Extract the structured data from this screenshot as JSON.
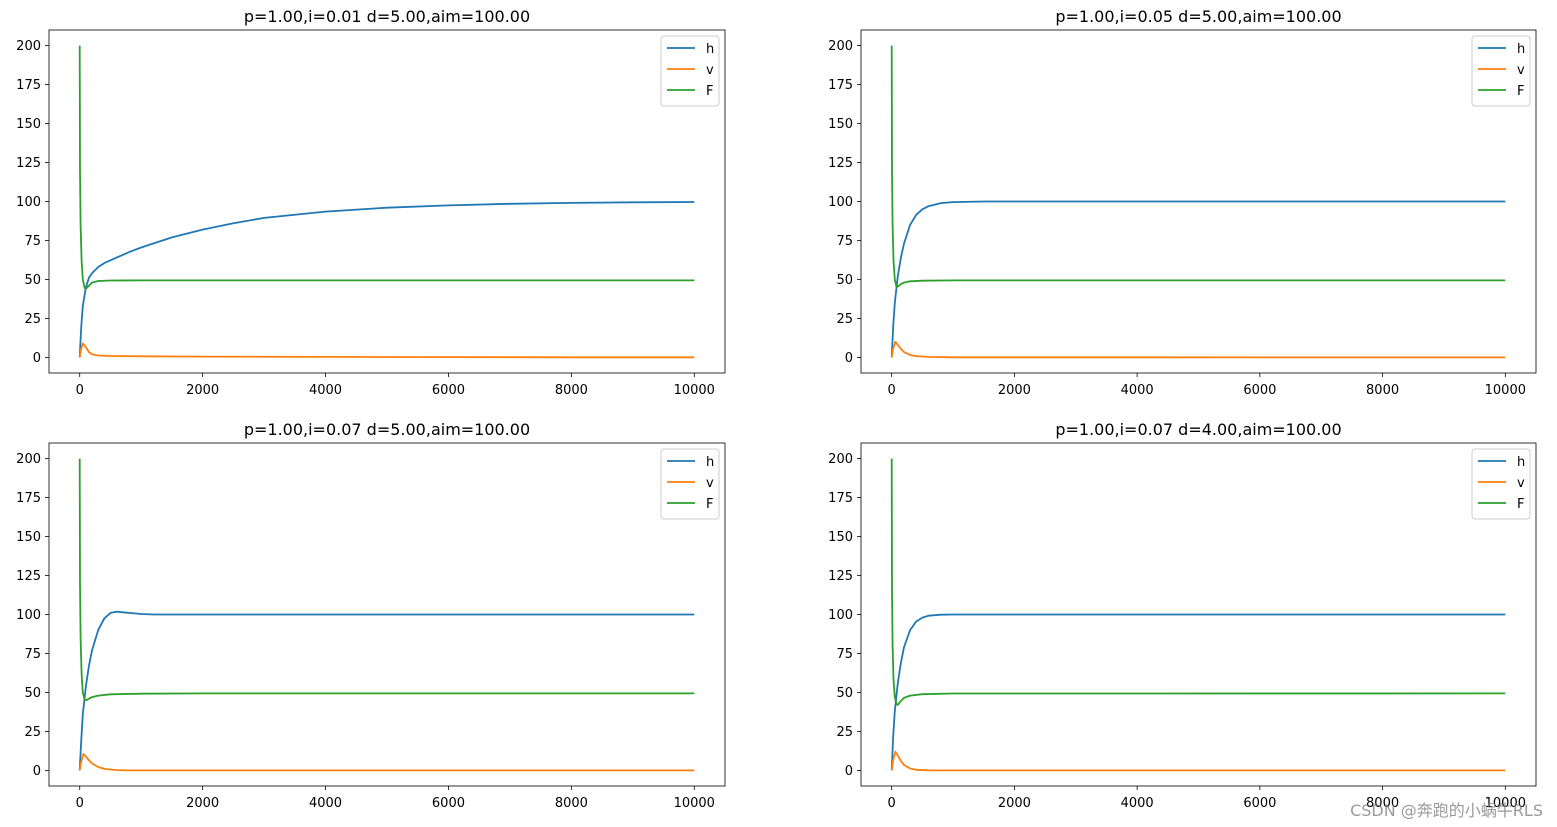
{
  "watermark": "CSDN @奔跑的小蜗牛RLS",
  "colors": {
    "h": "#1f77b4",
    "v": "#ff7f0e",
    "F": "#2ca02c"
  },
  "chart_data": [
    {
      "type": "line",
      "title": "p=1.00,i=0.01 d=5.00,aim=100.00",
      "xlim": [
        -500,
        10500
      ],
      "ylim": [
        -10,
        210
      ],
      "xticks": [
        0,
        2000,
        4000,
        6000,
        8000,
        10000
      ],
      "yticks": [
        0,
        25,
        50,
        75,
        100,
        125,
        150,
        175,
        200
      ],
      "legend": "top-right",
      "grid": false,
      "series": [
        {
          "name": "h",
          "color": "#1f77b4",
          "x": [
            0,
            10,
            25,
            50,
            100,
            150,
            200,
            300,
            400,
            600,
            800,
            1000,
            1500,
            2000,
            2500,
            3000,
            4000,
            5000,
            6000,
            7000,
            8000,
            9000,
            10000
          ],
          "y": [
            0,
            8,
            20,
            33,
            45,
            51,
            54,
            58,
            60.5,
            64,
            67.5,
            70.5,
            77,
            82,
            86,
            89.5,
            93.5,
            96,
            97.5,
            98.5,
            99.1,
            99.5,
            99.7
          ]
        },
        {
          "name": "v",
          "color": "#ff7f0e",
          "x": [
            0,
            20,
            50,
            100,
            150,
            200,
            300,
            500,
            1000,
            2000,
            4000,
            6000,
            8000,
            10000
          ],
          "y": [
            0,
            5,
            9,
            6.5,
            3.5,
            2,
            1.2,
            0.9,
            0.7,
            0.5,
            0.3,
            0.2,
            0.1,
            0.05
          ]
        },
        {
          "name": "F",
          "color": "#2ca02c",
          "x": [
            0,
            5,
            15,
            30,
            50,
            80,
            100,
            150,
            200,
            300,
            500,
            1000,
            2000,
            10000
          ],
          "y": [
            200,
            120,
            85,
            62,
            50,
            44.5,
            44,
            46,
            48,
            49,
            49.3,
            49.4,
            49.4,
            49.4
          ]
        }
      ]
    },
    {
      "type": "line",
      "title": "p=1.00,i=0.05 d=5.00,aim=100.00",
      "xlim": [
        -500,
        10500
      ],
      "ylim": [
        -10,
        210
      ],
      "xticks": [
        0,
        2000,
        4000,
        6000,
        8000,
        10000
      ],
      "yticks": [
        0,
        25,
        50,
        75,
        100,
        125,
        150,
        175,
        200
      ],
      "legend": "top-right",
      "grid": false,
      "series": [
        {
          "name": "h",
          "color": "#1f77b4",
          "x": [
            0,
            25,
            50,
            100,
            150,
            200,
            300,
            400,
            500,
            600,
            800,
            1000,
            1500,
            2000,
            10000
          ],
          "y": [
            0,
            20,
            35,
            52,
            64,
            73,
            85,
            91.5,
            95,
            97,
            99,
            99.6,
            100,
            100,
            100
          ]
        },
        {
          "name": "v",
          "color": "#ff7f0e",
          "x": [
            0,
            20,
            60,
            100,
            150,
            200,
            300,
            400,
            600,
            1000,
            10000
          ],
          "y": [
            0,
            5,
            10,
            8,
            5.5,
            3.5,
            1.6,
            0.8,
            0.3,
            0.1,
            0
          ]
        },
        {
          "name": "F",
          "color": "#2ca02c",
          "x": [
            0,
            5,
            15,
            30,
            50,
            80,
            100,
            150,
            200,
            300,
            500,
            1000,
            10000
          ],
          "y": [
            200,
            120,
            85,
            62,
            50,
            45,
            45.5,
            47,
            48,
            48.8,
            49.2,
            49.4,
            49.4
          ]
        }
      ]
    },
    {
      "type": "line",
      "title": "p=1.00,i=0.07 d=5.00,aim=100.00",
      "xlim": [
        -500,
        10500
      ],
      "ylim": [
        -10,
        210
      ],
      "xticks": [
        0,
        2000,
        4000,
        6000,
        8000,
        10000
      ],
      "yticks": [
        0,
        25,
        50,
        75,
        100,
        125,
        150,
        175,
        200
      ],
      "legend": "top-right",
      "grid": false,
      "series": [
        {
          "name": "h",
          "color": "#1f77b4",
          "x": [
            0,
            25,
            50,
            100,
            150,
            200,
            300,
            400,
            500,
            600,
            800,
            1000,
            1200,
            1500,
            2000,
            10000
          ],
          "y": [
            0,
            20,
            36,
            54,
            67,
            77,
            90,
            97.5,
            101,
            101.8,
            101,
            100.3,
            100,
            100,
            100,
            100
          ]
        },
        {
          "name": "v",
          "color": "#ff7f0e",
          "x": [
            0,
            20,
            60,
            100,
            150,
            200,
            300,
            400,
            600,
            800,
            1000,
            10000
          ],
          "y": [
            0,
            5,
            10.5,
            9,
            6.5,
            4.5,
            2.2,
            1,
            0.2,
            0,
            0,
            0
          ]
        },
        {
          "name": "F",
          "color": "#2ca02c",
          "x": [
            0,
            5,
            15,
            30,
            50,
            80,
            100,
            150,
            200,
            300,
            500,
            1000,
            2000,
            10000
          ],
          "y": [
            200,
            120,
            85,
            62,
            50,
            45.5,
            45,
            46,
            47,
            48,
            48.8,
            49.2,
            49.4,
            49.4
          ]
        }
      ]
    },
    {
      "type": "line",
      "title": "p=1.00,i=0.07 d=4.00,aim=100.00",
      "xlim": [
        -500,
        10500
      ],
      "ylim": [
        -10,
        210
      ],
      "xticks": [
        0,
        2000,
        4000,
        6000,
        8000,
        10000
      ],
      "yticks": [
        0,
        25,
        50,
        75,
        100,
        125,
        150,
        175,
        200
      ],
      "legend": "top-right",
      "grid": false,
      "series": [
        {
          "name": "h",
          "color": "#1f77b4",
          "x": [
            0,
            25,
            50,
            100,
            150,
            200,
            300,
            400,
            500,
            600,
            800,
            1000,
            1500,
            10000
          ],
          "y": [
            0,
            22,
            38,
            56,
            69,
            79,
            90,
            95.5,
            98,
            99.2,
            99.9,
            100,
            100,
            100
          ]
        },
        {
          "name": "v",
          "color": "#ff7f0e",
          "x": [
            0,
            20,
            60,
            100,
            150,
            200,
            300,
            400,
            600,
            1000,
            10000
          ],
          "y": [
            0,
            6,
            12,
            9.5,
            6,
            3.5,
            1.2,
            0.4,
            0.1,
            0,
            0
          ]
        },
        {
          "name": "F",
          "color": "#2ca02c",
          "x": [
            0,
            5,
            15,
            30,
            50,
            80,
            100,
            150,
            200,
            300,
            500,
            1000,
            10000
          ],
          "y": [
            200,
            115,
            80,
            58,
            47,
            42.5,
            42,
            44.5,
            46.5,
            48,
            48.9,
            49.3,
            49.4
          ]
        }
      ]
    }
  ]
}
